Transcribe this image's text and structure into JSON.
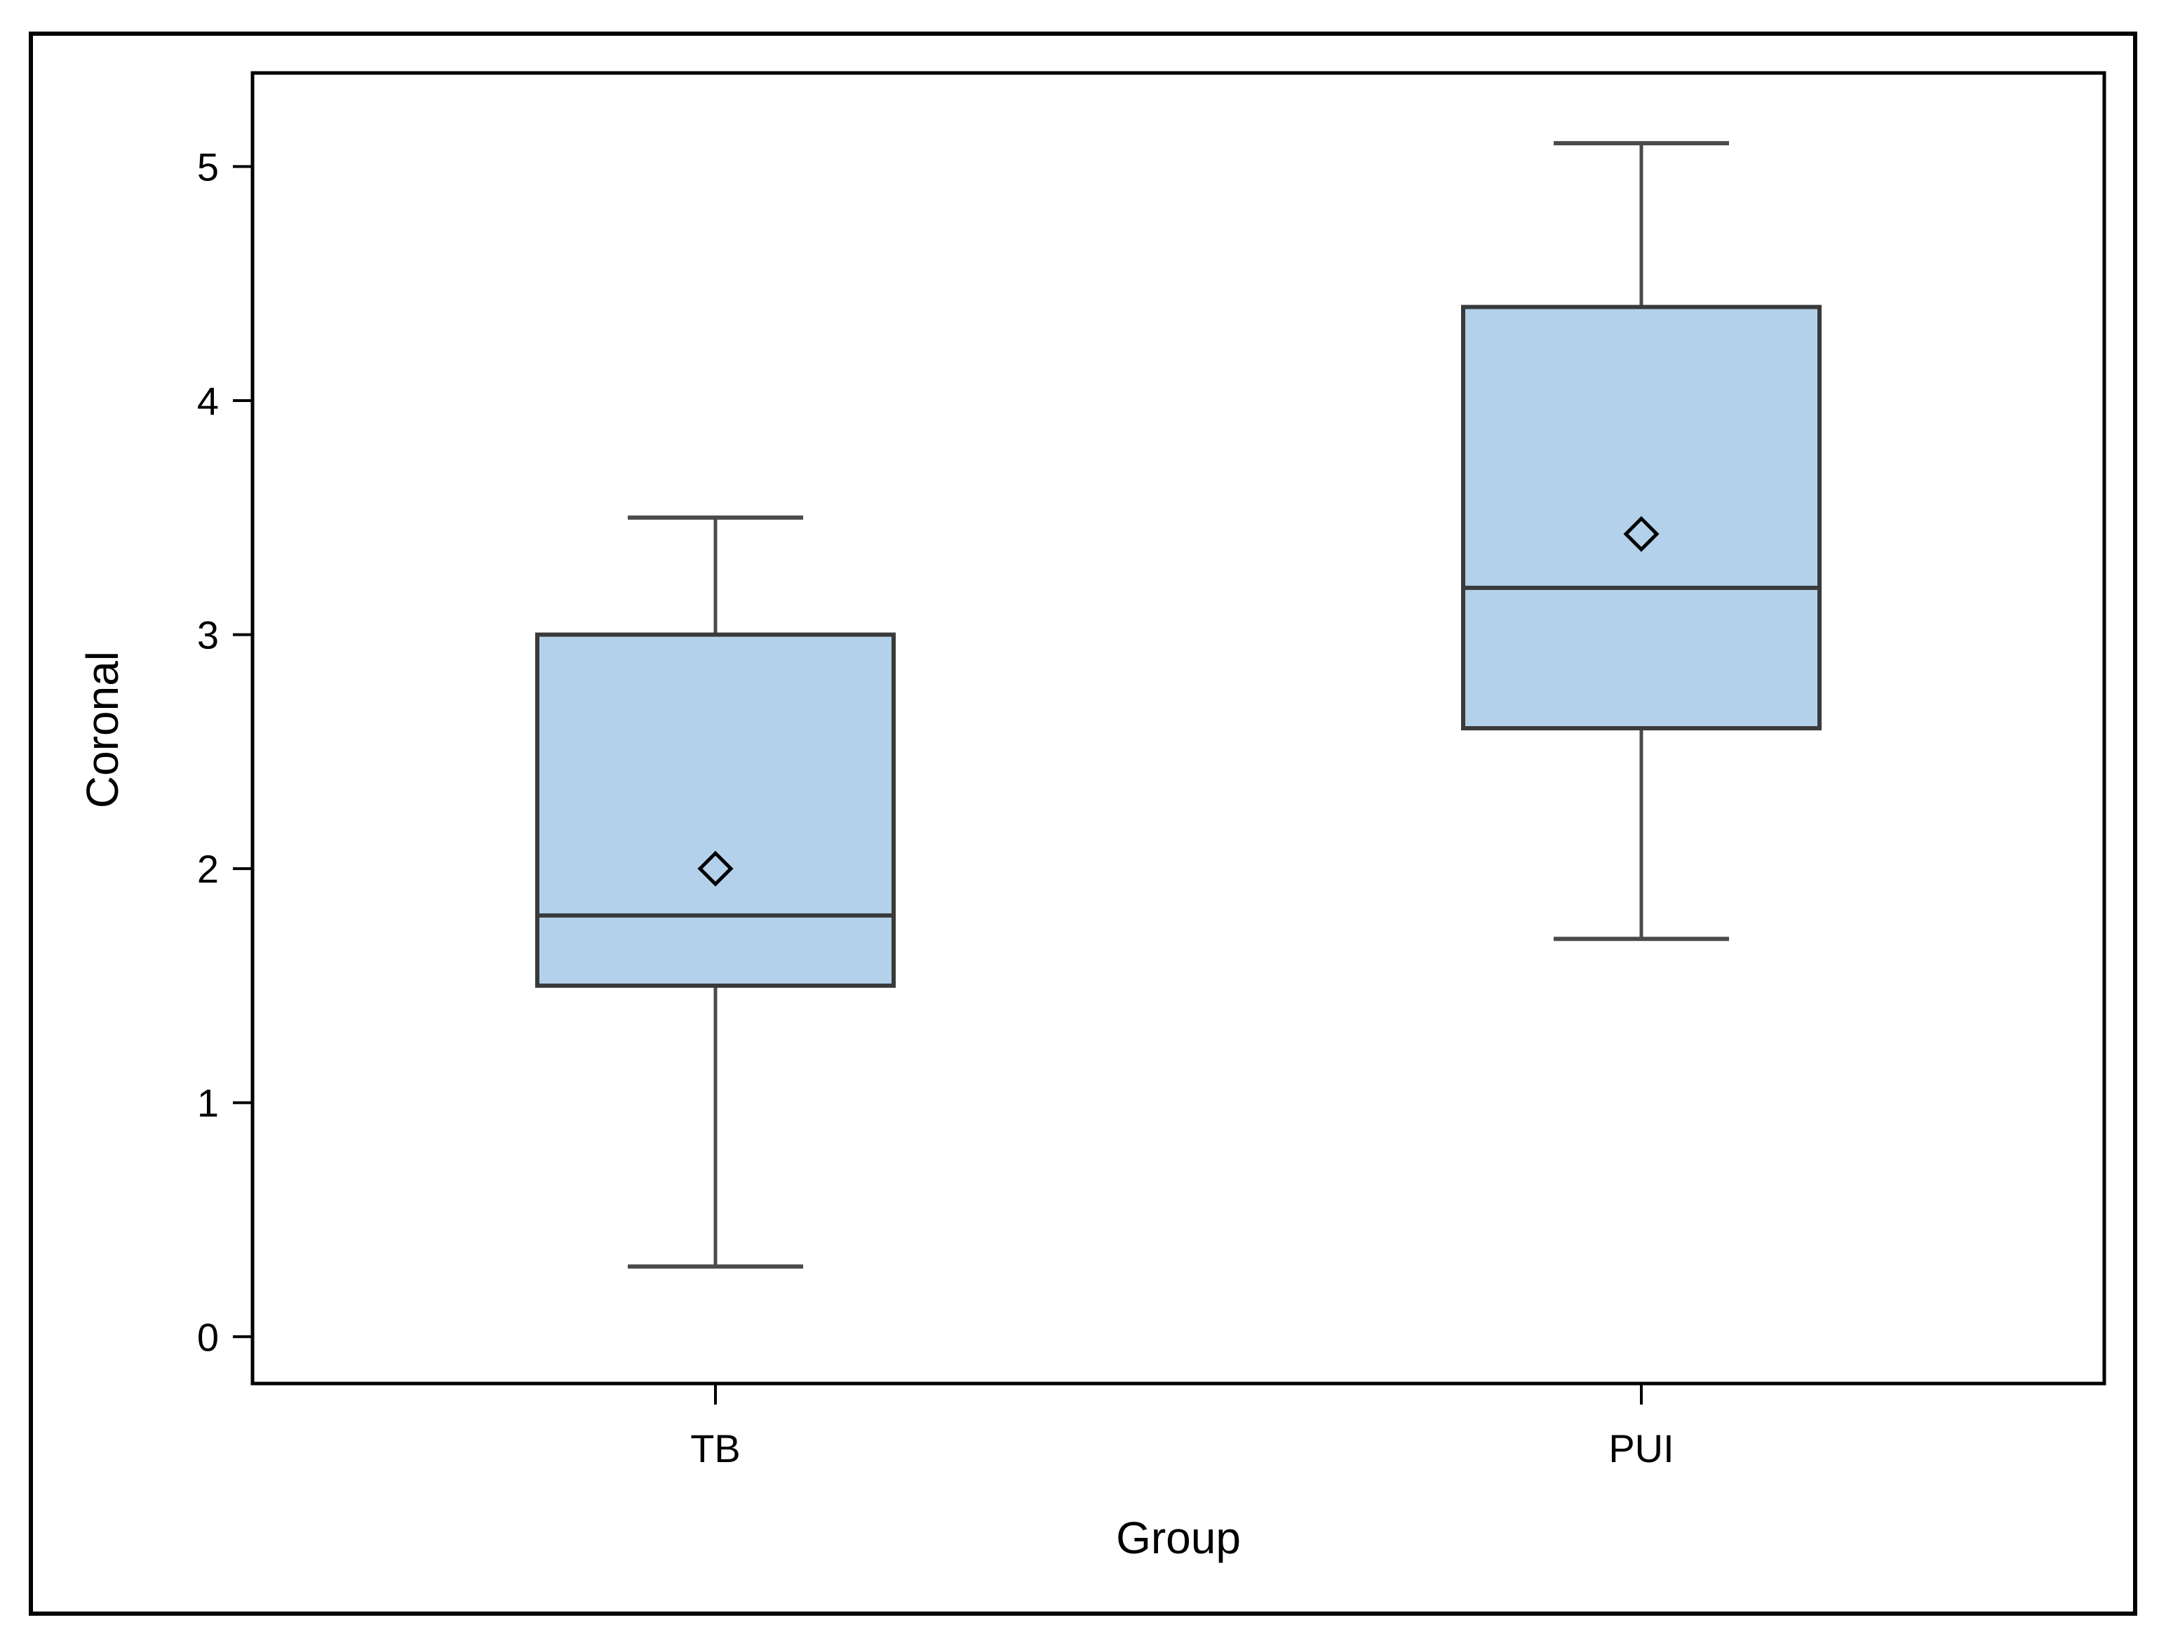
{
  "chart_data": {
    "type": "box",
    "title": "",
    "xlabel": "Group",
    "ylabel": "Coronal",
    "ylim": [
      -0.2,
      5.4
    ],
    "yticks": [
      0,
      1,
      2,
      3,
      4,
      5
    ],
    "legend": "none",
    "grid": false,
    "categories": [
      "TB",
      "PUI"
    ],
    "boxes": [
      {
        "category": "TB",
        "min": 0.3,
        "q1": 1.5,
        "median": 1.8,
        "q3": 3.0,
        "max": 3.5,
        "mean": 2.0
      },
      {
        "category": "PUI",
        "min": 1.7,
        "q1": 2.6,
        "median": 3.2,
        "q3": 4.4,
        "max": 5.1,
        "mean": 3.43
      }
    ],
    "colors": {
      "box_fill": "#b3d1eb",
      "box_edge": "#3a3a3a",
      "whisker": "#4a4a4a",
      "axis": "#000000"
    }
  }
}
